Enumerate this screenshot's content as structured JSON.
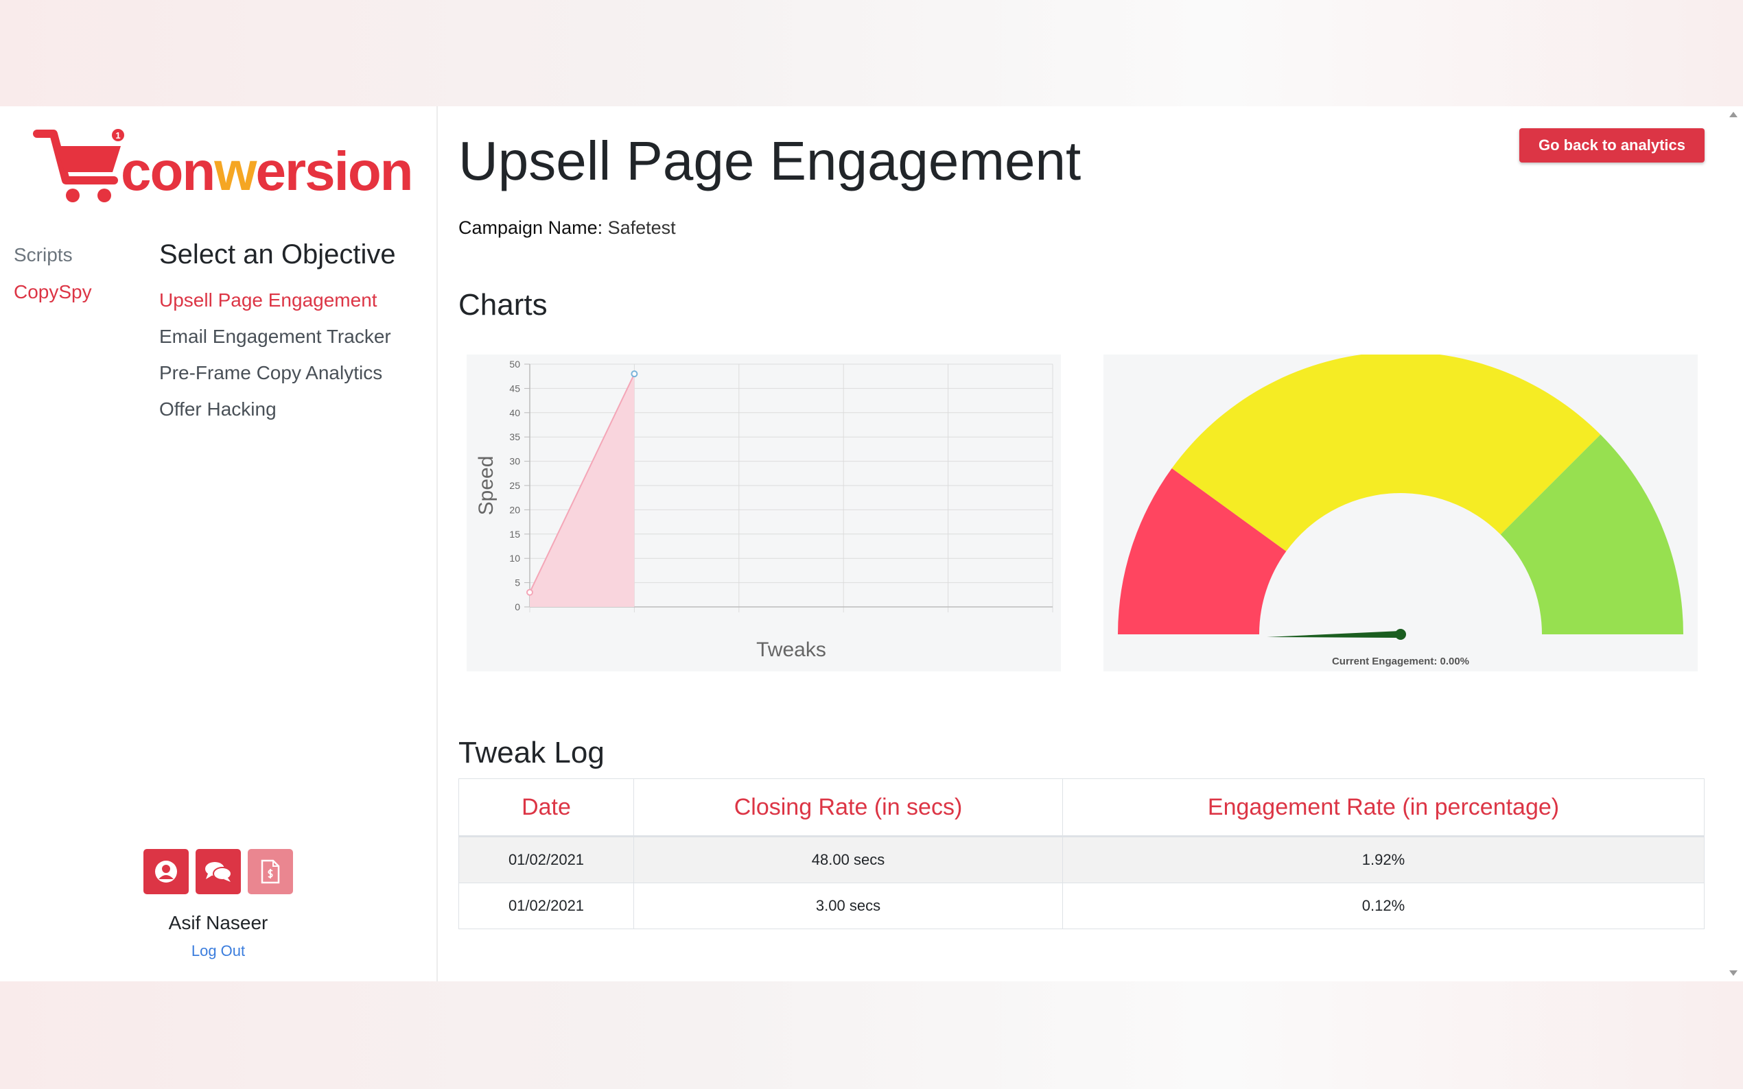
{
  "brand": {
    "name_prefix": "con",
    "name_accent": "w",
    "name_suffix": "ersion",
    "badge": "1",
    "color": "#e6333f"
  },
  "sidebar": {
    "nav": [
      {
        "label": "Scripts",
        "active": false
      },
      {
        "label": "CopySpy",
        "active": true
      }
    ],
    "objective_heading": "Select an Objective",
    "objectives": [
      {
        "label": "Upsell Page Engagement",
        "active": true
      },
      {
        "label": "Email Engagement Tracker",
        "active": false
      },
      {
        "label": "Pre-Frame Copy Analytics",
        "active": false
      },
      {
        "label": "Offer Hacking",
        "active": false
      }
    ],
    "icons": [
      "user-circle-icon",
      "chat-bubbles-icon",
      "invoice-icon"
    ],
    "user_name": "Asif Naseer",
    "logout_label": "Log Out"
  },
  "main": {
    "title": "Upsell Page Engagement",
    "back_button": "Go back to analytics",
    "campaign_label": "Campaign Name:",
    "campaign_value": "Safetest",
    "charts_heading": "Charts",
    "tweak_log_heading": "Tweak Log",
    "table": {
      "headers": [
        "Date",
        "Closing Rate (in secs)",
        "Engagement Rate (in percentage)"
      ],
      "rows": [
        [
          "01/02/2021",
          "48.00 secs",
          "1.92%"
        ],
        [
          "01/02/2021",
          "3.00 secs",
          "0.12%"
        ]
      ]
    }
  },
  "chart_data": [
    {
      "type": "area",
      "xlabel": "Tweaks",
      "ylabel": "Speed",
      "ylim": [
        0,
        50
      ],
      "yticks": [
        "0",
        "5",
        "10",
        "15",
        "20",
        "25",
        "30",
        "35",
        "40",
        "45",
        "50"
      ],
      "x": [
        0,
        1
      ],
      "xlim": [
        0,
        5
      ],
      "values": [
        3,
        48
      ],
      "color": "#f4a6b7",
      "grid": true
    },
    {
      "type": "gauge",
      "label": "Current Engagement: 0.00%",
      "value": 0.0,
      "segments": [
        {
          "color": "#ff4560",
          "share": 0.2
        },
        {
          "color": "#f5ec24",
          "share": 0.55
        },
        {
          "color": "#97e050",
          "share": 0.25
        }
      ],
      "needle_color": "#1b5e20"
    }
  ]
}
